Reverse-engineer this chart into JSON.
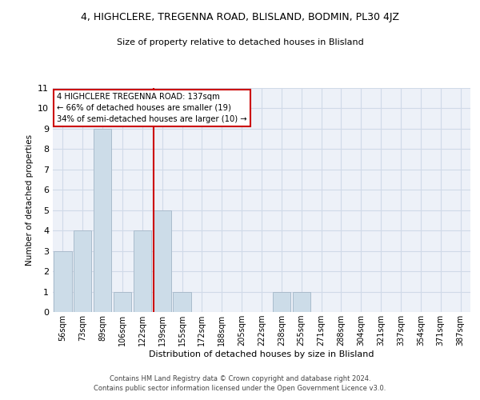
{
  "title": "4, HIGHCLERE, TREGENNA ROAD, BLISLAND, BODMIN, PL30 4JZ",
  "subtitle": "Size of property relative to detached houses in Blisland",
  "xlabel": "Distribution of detached houses by size in Blisland",
  "ylabel": "Number of detached properties",
  "categories": [
    "56sqm",
    "73sqm",
    "89sqm",
    "106sqm",
    "122sqm",
    "139sqm",
    "155sqm",
    "172sqm",
    "188sqm",
    "205sqm",
    "222sqm",
    "238sqm",
    "255sqm",
    "271sqm",
    "288sqm",
    "304sqm",
    "321sqm",
    "337sqm",
    "354sqm",
    "371sqm",
    "387sqm"
  ],
  "values": [
    3,
    4,
    9,
    1,
    4,
    5,
    1,
    0,
    0,
    0,
    0,
    1,
    1,
    0,
    0,
    0,
    0,
    0,
    0,
    0,
    0
  ],
  "bar_color": "#ccdce8",
  "bar_edgecolor": "#aabccc",
  "vline_index": 5,
  "vline_color": "#cc0000",
  "annotation_line1": "4 HIGHCLERE TREGENNA ROAD: 137sqm",
  "annotation_line2": "← 66% of detached houses are smaller (19)",
  "annotation_line3": "34% of semi-detached houses are larger (10) →",
  "annotation_box_color": "#ffffff",
  "annotation_box_edgecolor": "#cc0000",
  "ylim": [
    0,
    11
  ],
  "yticks": [
    0,
    1,
    2,
    3,
    4,
    5,
    6,
    7,
    8,
    9,
    10,
    11
  ],
  "grid_color": "#d0dae8",
  "bg_color": "#edf1f8",
  "footer1": "Contains HM Land Registry data © Crown copyright and database right 2024.",
  "footer2": "Contains public sector information licensed under the Open Government Licence v3.0."
}
